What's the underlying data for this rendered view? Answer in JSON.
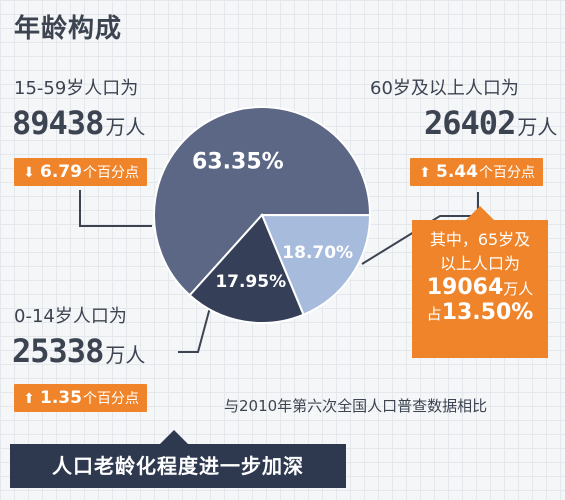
{
  "title": "年龄构成",
  "groups": {
    "age15_59": {
      "label": "15-59岁人口为",
      "value": "89438",
      "unit": "万人",
      "change_direction": "down",
      "change_value": "6.79",
      "change_unit": "个百分点"
    },
    "age60plus": {
      "label": "60岁及以上人口为",
      "value": "26402",
      "unit": "万人",
      "change_direction": "up",
      "change_value": "5.44",
      "change_unit": "个百分点"
    },
    "age0_14": {
      "label": "0-14岁人口为",
      "value": "25338",
      "unit": "万人",
      "change_direction": "up",
      "change_value": "1.35",
      "change_unit": "个百分点"
    }
  },
  "callout": {
    "line1": "其中，65岁及",
    "line2": "以上人口为",
    "value": "19064",
    "unit": "万人",
    "share_prefix": "占",
    "share": "13.50%"
  },
  "footnote": "与2010年第六次全国人口普查数据相比",
  "conclusion": "人口老龄化程度进一步加深",
  "colors": {
    "slice_15_59": "#5b6784",
    "slice_60plus": "#a7bcdc",
    "slice_0_14": "#354058",
    "accent_orange": "#f0842a",
    "dark_banner": "#2e3950"
  },
  "chart_data": {
    "type": "pie",
    "labels": [
      "15-59岁",
      "60岁及以上",
      "0-14岁"
    ],
    "values": [
      63.35,
      18.7,
      17.95
    ],
    "value_labels": [
      "63.35%",
      "18.70%",
      "17.95%"
    ],
    "title": ""
  }
}
